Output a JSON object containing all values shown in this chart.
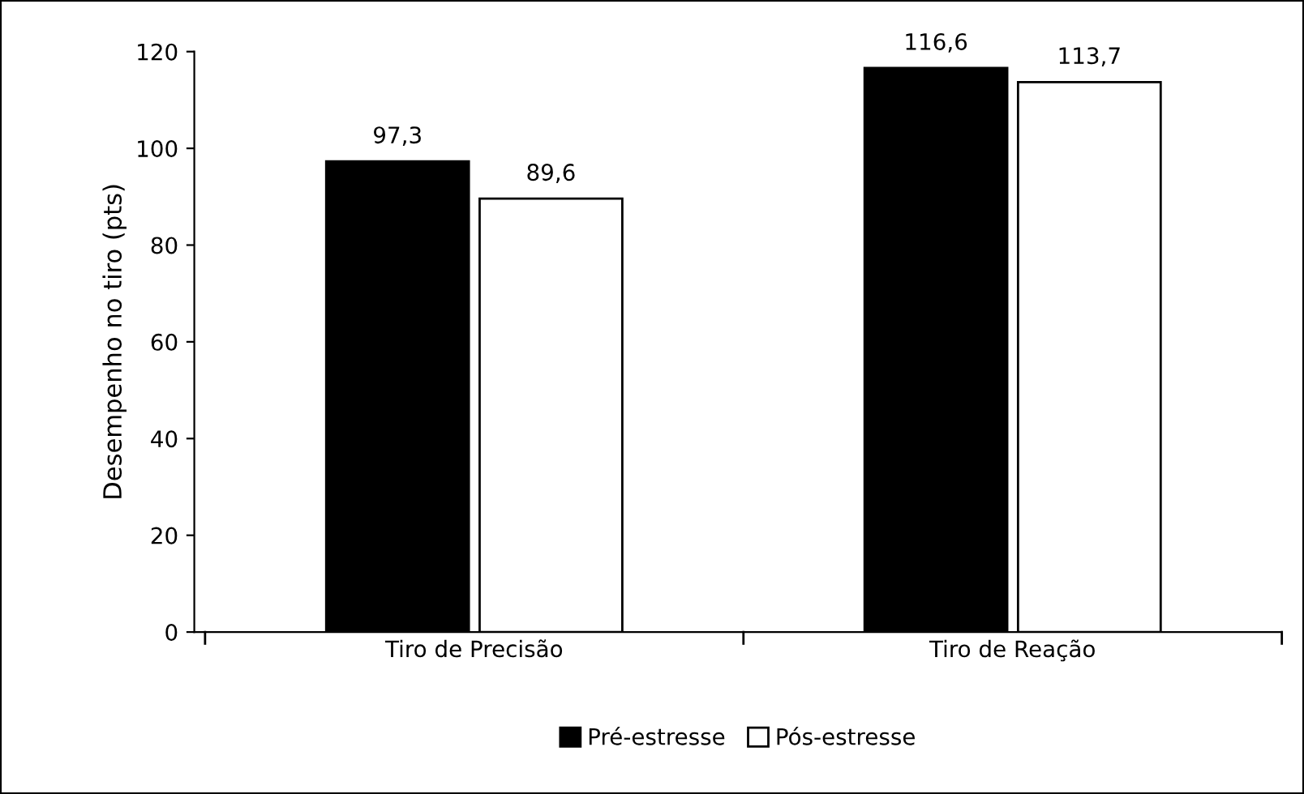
{
  "chart_data": {
    "type": "bar",
    "ylabel": "Desempenho no tiro (pts)",
    "categories": [
      "Tiro de Precisão",
      "Tiro de Reação"
    ],
    "series": [
      {
        "name": "Pré-estresse",
        "color": "#000000",
        "values": [
          97.3,
          116.6
        ],
        "value_labels": [
          "97,3",
          "116,6"
        ]
      },
      {
        "name": "Pós-estresse",
        "color": "#ffffff",
        "values": [
          89.6,
          113.7
        ],
        "value_labels": [
          "89,6",
          "113,7"
        ]
      }
    ],
    "ylim": [
      0,
      120
    ],
    "yticks": [
      0,
      20,
      40,
      60,
      80,
      100,
      120
    ],
    "grid": false,
    "legend": "bottom"
  }
}
